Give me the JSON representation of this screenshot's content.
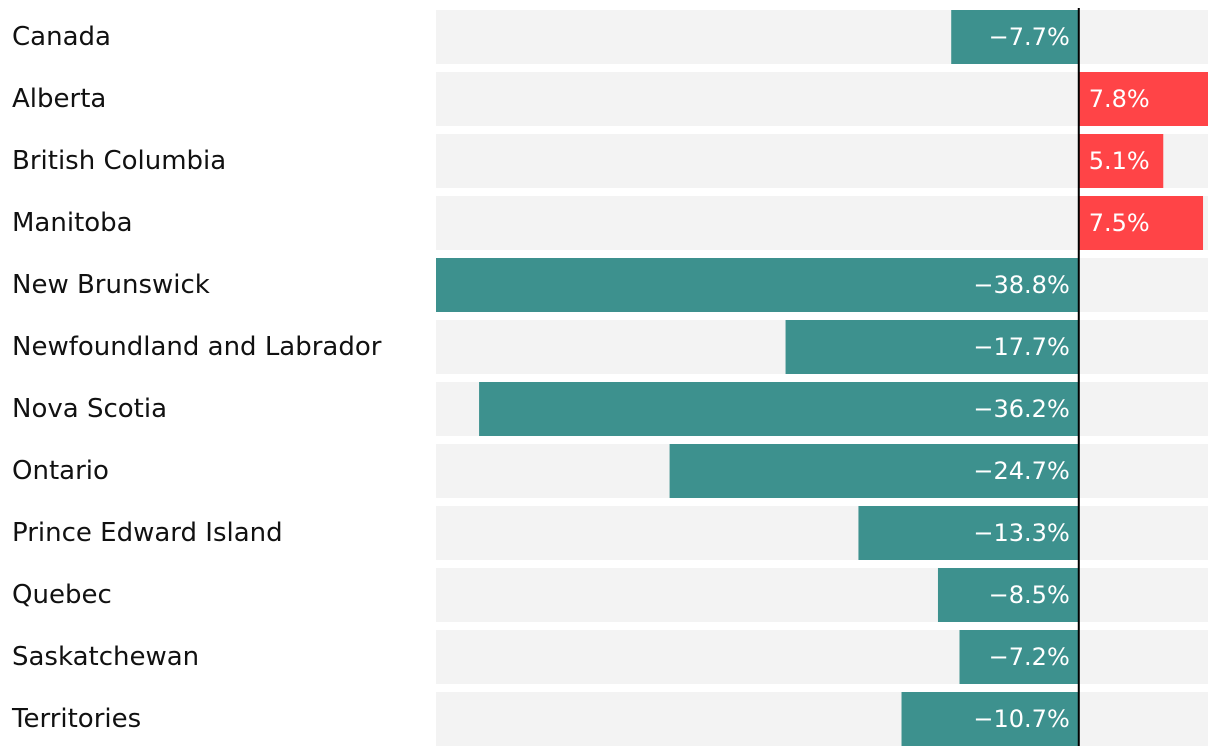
{
  "chart_data": {
    "type": "bar",
    "orientation": "horizontal",
    "title": "",
    "xlabel": "",
    "ylabel": "",
    "categories": [
      "Canada",
      "Alberta",
      "British Columbia",
      "Manitoba",
      "New Brunswick",
      "Newfoundland and Labrador",
      "Nova Scotia",
      "Ontario",
      "Prince Edward Island",
      "Quebec",
      "Saskatchewan",
      "Territories"
    ],
    "values": [
      -7.7,
      7.8,
      5.1,
      7.5,
      -38.8,
      -17.7,
      -36.2,
      -24.7,
      -13.3,
      -8.5,
      -7.2,
      -10.7
    ],
    "value_labels": [
      "−7.7%",
      "7.8%",
      "5.1%",
      "7.5%",
      "−38.8%",
      "−17.7%",
      "−36.2%",
      "−24.7%",
      "−13.3%",
      "−8.5%",
      "−7.2%",
      "−10.7%"
    ],
    "xlim": [
      -38.8,
      7.8
    ],
    "grid": false,
    "legend": "none",
    "colors": {
      "negative": "#3d918e",
      "positive": "#ff4447",
      "track": "#f3f3f3",
      "zero_line": "#000000",
      "label_text": "#111111",
      "value_text": "#ffffff"
    }
  }
}
